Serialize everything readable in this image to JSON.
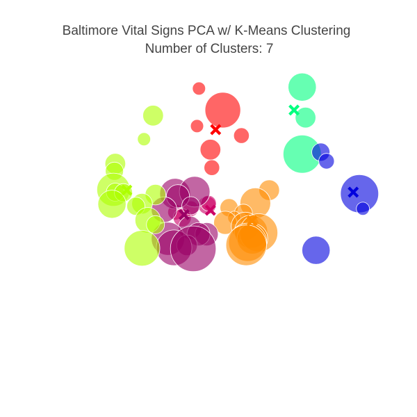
{
  "chart_data": {
    "type": "scatter",
    "title": "Baltimore Vital Signs PCA w/ K-Means Clustering",
    "subtitle": "Number of Clusters: 7",
    "xlabel": "",
    "ylabel": "",
    "grid": false,
    "legend": "none",
    "axes_visible": false,
    "xlim": [
      -3.2,
      3.2
    ],
    "ylim": [
      -2.9,
      3.0
    ],
    "marker_opacity": 0.6,
    "series": [
      {
        "cluster": 0,
        "color": "#ff0000",
        "centroid": {
          "x": 0.15,
          "y": 1.73
        },
        "points": [
          {
            "x": -0.2,
            "y": 2.55,
            "size": 3
          },
          {
            "x": 0.3,
            "y": 2.12,
            "size": 12
          },
          {
            "x": -0.24,
            "y": 1.8,
            "size": 3
          },
          {
            "x": 0.69,
            "y": 1.61,
            "size": 4
          },
          {
            "x": 0.04,
            "y": 1.33,
            "size": 6
          },
          {
            "x": 0.07,
            "y": 0.97,
            "size": 4
          }
        ]
      },
      {
        "cluster": 1,
        "color": "#00ff7f",
        "centroid": {
          "x": 1.79,
          "y": 2.12
        },
        "points": [
          {
            "x": 1.96,
            "y": 2.58,
            "size": 9
          },
          {
            "x": 2.03,
            "y": 1.97,
            "size": 6
          },
          {
            "x": 1.96,
            "y": 1.24,
            "size": 13
          }
        ]
      },
      {
        "cluster": 2,
        "color": "#0000dd",
        "centroid": {
          "x": 3.03,
          "y": 0.48
        },
        "points": [
          {
            "x": 2.35,
            "y": 1.28,
            "size": 5
          },
          {
            "x": 2.47,
            "y": 1.1,
            "size": 4
          },
          {
            "x": 3.16,
            "y": 0.45,
            "size": 13
          },
          {
            "x": 3.23,
            "y": 0.15,
            "size": 3
          },
          {
            "x": 2.25,
            "y": -0.68,
            "size": 9
          }
        ]
      },
      {
        "cluster": 3,
        "color": "#ff8c00",
        "centroid": {
          "x": 0.91,
          "y": -0.09
        },
        "points": [
          {
            "x": 1.27,
            "y": 0.52,
            "size": 6
          },
          {
            "x": 0.98,
            "y": 0.26,
            "size": 10
          },
          {
            "x": 0.43,
            "y": 0.17,
            "size": 5
          },
          {
            "x": 0.73,
            "y": 0.06,
            "size": 5
          },
          {
            "x": 0.54,
            "y": -0.03,
            "size": 3
          },
          {
            "x": 0.35,
            "y": -0.13,
            "size": 7
          },
          {
            "x": 0.77,
            "y": -0.2,
            "size": 9
          },
          {
            "x": 0.89,
            "y": -0.31,
            "size": 11
          },
          {
            "x": 1.05,
            "y": -0.33,
            "size": 13
          },
          {
            "x": 0.92,
            "y": -0.45,
            "size": 10
          },
          {
            "x": 0.82,
            "y": -0.52,
            "size": 13
          },
          {
            "x": 0.79,
            "y": -0.58,
            "size": 14
          }
        ]
      },
      {
        "cluster": 4,
        "color": "#cc0066",
        "centroid": {
          "x": 0.04,
          "y": 0.12
        },
        "points": [
          {
            "x": -0.03,
            "y": 0.22,
            "size": 5
          },
          {
            "x": 0.0,
            "y": 0.26,
            "size": 4
          },
          {
            "x": -0.37,
            "y": 0.15,
            "size": 4
          },
          {
            "x": -0.69,
            "y": 0.08,
            "size": 4
          },
          {
            "x": -0.55,
            "y": -0.03,
            "size": 5
          }
        ]
      },
      {
        "cluster": 5,
        "color": "#990066",
        "centroid": {
          "x": -0.51,
          "y": 0.03
        },
        "points": [
          {
            "x": -0.7,
            "y": 0.45,
            "size": 10
          },
          {
            "x": -0.29,
            "y": 0.49,
            "size": 10
          },
          {
            "x": -0.64,
            "y": 0.4,
            "size": 7
          },
          {
            "x": -0.37,
            "y": 0.21,
            "size": 5
          },
          {
            "x": -0.93,
            "y": 0.13,
            "size": 8
          },
          {
            "x": -0.39,
            "y": -0.23,
            "size": 7
          },
          {
            "x": -0.04,
            "y": -0.36,
            "size": 7
          },
          {
            "x": -0.21,
            "y": -0.36,
            "size": 7
          },
          {
            "x": -0.85,
            "y": -0.45,
            "size": 11
          },
          {
            "x": -0.45,
            "y": -0.58,
            "size": 6
          },
          {
            "x": -0.72,
            "y": -0.63,
            "size": 12
          },
          {
            "x": -0.32,
            "y": -0.65,
            "size": 16
          }
        ]
      },
      {
        "cluster": 6,
        "color": "#adff00",
        "centroid": {
          "x": -1.71,
          "y": 0.52
        },
        "points": [
          {
            "x": -1.16,
            "y": 2.01,
            "size": 6
          },
          {
            "x": -1.35,
            "y": 1.54,
            "size": 3
          },
          {
            "x": -1.95,
            "y": 1.05,
            "size": 6
          },
          {
            "x": -1.97,
            "y": 0.9,
            "size": 5
          },
          {
            "x": -1.99,
            "y": 0.53,
            "size": 11
          },
          {
            "x": -1.95,
            "y": 0.48,
            "size": 5
          },
          {
            "x": -1.78,
            "y": 0.47,
            "size": 5
          },
          {
            "x": -1.11,
            "y": 0.43,
            "size": 6
          },
          {
            "x": -1.39,
            "y": 0.25,
            "size": 6
          },
          {
            "x": -1.52,
            "y": 0.2,
            "size": 5
          },
          {
            "x": -2.02,
            "y": 0.24,
            "size": 9
          },
          {
            "x": -1.27,
            "y": -0.08,
            "size": 8
          },
          {
            "x": -1.11,
            "y": -0.17,
            "size": 5
          },
          {
            "x": -1.39,
            "y": -0.64,
            "size": 12
          }
        ]
      }
    ]
  }
}
